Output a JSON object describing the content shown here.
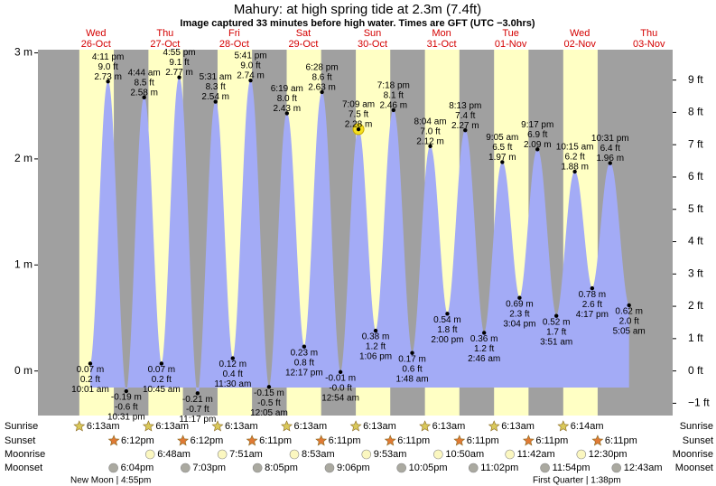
{
  "chart_data": {
    "type": "tide",
    "title": "Mahury: at high  spring tide at 2.3m (7.4ft)",
    "subtitle": "Image captured 33 minutes before high water. Times are GFT (UTC −3.0hrs)",
    "days": [
      {
        "weekday": "Wed",
        "date": "26-Oct"
      },
      {
        "weekday": "Thu",
        "date": "27-Oct"
      },
      {
        "weekday": "Fri",
        "date": "28-Oct"
      },
      {
        "weekday": "Sat",
        "date": "29-Oct"
      },
      {
        "weekday": "Sun",
        "date": "30-Oct"
      },
      {
        "weekday": "Mon",
        "date": "31-Oct"
      },
      {
        "weekday": "Tue",
        "date": "01-Nov"
      },
      {
        "weekday": "Wed",
        "date": "02-Nov"
      },
      {
        "weekday": "Thu",
        "date": "03-Nov"
      }
    ],
    "times": [
      "10:01 am",
      "4:11 pm",
      "10:31 pm",
      "4:44 am",
      "10:45 am",
      "4:55 pm",
      "11:17 pm",
      "5:31 am",
      "11:30 am",
      "5:41 pm",
      "12:05 am",
      "6:19 am",
      "12:17 pm",
      "6:28 pm",
      "12:54 am",
      "7:09 am",
      "1:06 pm",
      "7:18 pm",
      "1:48 am",
      "8:04 am",
      "2:00 pm",
      "8:13 pm",
      "2:46 am",
      "9:05 am",
      "3:04 pm",
      "9:17 pm",
      "3:51 am",
      "10:15 am",
      "4:17 pm",
      "10:31 pm",
      "5:05 am"
    ],
    "values": [
      0.07,
      2.73,
      -0.19,
      2.58,
      0.07,
      2.77,
      -0.21,
      2.54,
      0.12,
      2.74,
      -0.15,
      2.43,
      0.23,
      2.63,
      -0.01,
      2.28,
      0.38,
      2.46,
      0.17,
      2.12,
      0.54,
      2.27,
      0.36,
      1.97,
      0.69,
      2.09,
      0.52,
      1.88,
      0.78,
      1.96,
      0.62
    ],
    "value_labels": [
      "0.07 m",
      "2.73 m",
      "-0.19 m",
      "2.58 m",
      "0.07 m",
      "2.77 m",
      "-0.21 m",
      "2.54 m",
      "0.12 m",
      "2.74 m",
      "-0.15 m",
      "2.43 m",
      "0.23 m",
      "2.63 m",
      "-0.01 m",
      "2.28 m",
      "0.38 m",
      "2.46 m",
      "0.17 m",
      "2.12 m",
      "0.54 m",
      "2.27 m",
      "0.36 m",
      "1.97 m",
      "0.69 m",
      "2.09 m",
      "0.52 m",
      "1.88 m",
      "0.78 m",
      "1.96 m",
      "0.62 m"
    ],
    "ft_labels": [
      "0.2 ft",
      "9.0 ft",
      "-0.6 ft",
      "8.5 ft",
      "0.2 ft",
      "9.1 ft",
      "-0.7 ft",
      "8.3 ft",
      "0.4 ft",
      "9.0 ft",
      "-0.5 ft",
      "8.0 ft",
      "0.8 ft",
      "8.6 ft",
      "-0.0 ft",
      "7.5 ft",
      "1.2 ft",
      "8.1 ft",
      "0.6 ft",
      "7.0 ft",
      "1.8 ft",
      "7.4 ft",
      "1.2 ft",
      "6.5 ft",
      "2.3 ft",
      "6.9 ft",
      "1.7 ft",
      "6.2 ft",
      "2.6 ft",
      "6.4 ft",
      "2.0 ft"
    ],
    "color": "#a3abf6",
    "ylim": [
      -0.42,
      3.03
    ],
    "yticks": [
      {
        "value": 0,
        "label": "0 m"
      },
      {
        "value": 1,
        "label": "1 m"
      },
      {
        "value": 2,
        "label": "2 m"
      },
      {
        "value": 3,
        "label": "3 m"
      }
    ],
    "y2lim": [
      -1.38,
      9.94
    ],
    "y2ticks": [
      {
        "value": -1,
        "label": "−1 ft"
      },
      {
        "value": 0,
        "label": "0 ft"
      },
      {
        "value": 1,
        "label": "1 ft"
      },
      {
        "value": 2,
        "label": "2 ft"
      },
      {
        "value": 3,
        "label": "3 ft"
      },
      {
        "value": 4,
        "label": "4 ft"
      },
      {
        "value": 5,
        "label": "5 ft"
      },
      {
        "value": 6,
        "label": "6 ft"
      },
      {
        "value": 7,
        "label": "7 ft"
      },
      {
        "value": 8,
        "label": "8 ft"
      },
      {
        "value": 9,
        "label": "9 ft"
      }
    ]
  },
  "almanac": {
    "rows": [
      {
        "name": "Sunrise",
        "times": [
          "6:13am",
          "6:13am",
          "6:13am",
          "6:13am",
          "6:13am",
          "6:13am",
          "6:13am",
          "6:14am"
        ]
      },
      {
        "name": "Sunset",
        "times": [
          "6:12pm",
          "6:12pm",
          "6:11pm",
          "6:11pm",
          "6:11pm",
          "6:11pm",
          "6:11pm",
          "6:11pm"
        ]
      },
      {
        "name": "Moonrise",
        "times": [
          "6:48am",
          "7:51am",
          "8:53am",
          "9:53am",
          "10:50am",
          "11:42am",
          "12:30pm"
        ]
      },
      {
        "name": "Moonset",
        "times": [
          "6:04pm",
          "7:03pm",
          "8:05pm",
          "9:06pm",
          "10:05pm",
          "11:02pm",
          "11:54pm",
          "12:43am"
        ]
      }
    ],
    "notes": [
      "New Moon | 4:55pm",
      "First Quarter | 1:38pm"
    ]
  }
}
